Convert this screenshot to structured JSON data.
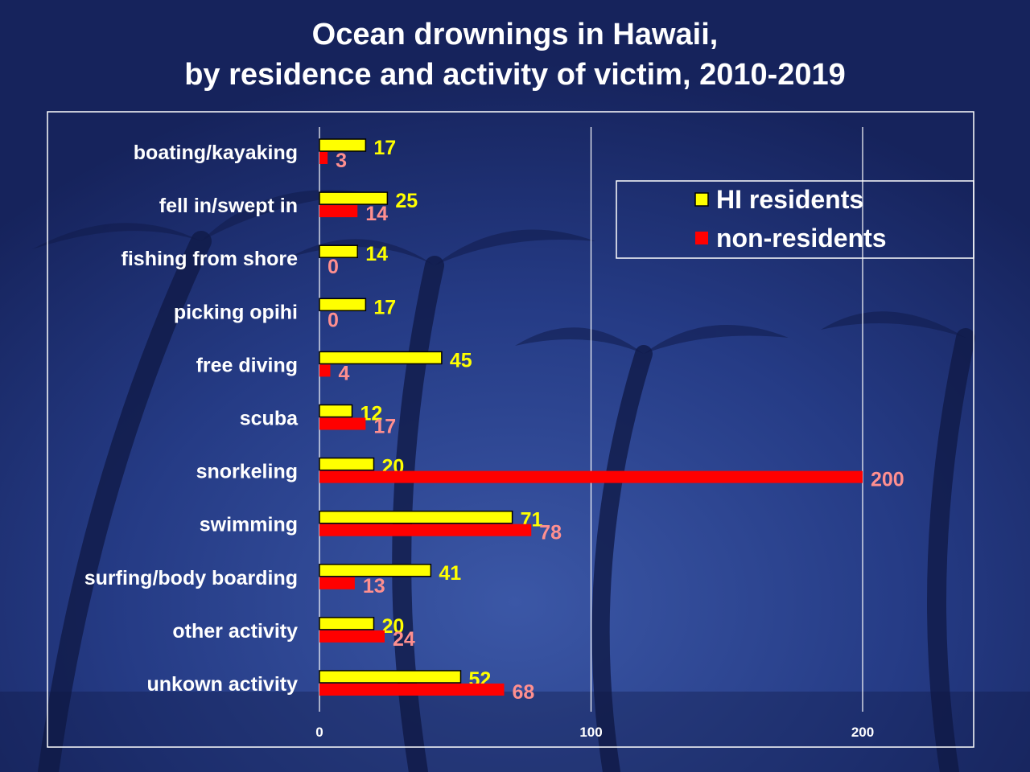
{
  "title_line1": "Ocean drownings in Hawaii,",
  "title_line2": "by residence and activity of victim, 2010-2019",
  "chart_data": {
    "type": "bar",
    "orientation": "horizontal",
    "categories": [
      "boating/kayaking",
      "fell in/swept in",
      "fishing from shore",
      "picking opihi",
      "free diving",
      "scuba",
      "snorkeling",
      "swimming",
      "surfing/body boarding",
      "other activity",
      "unkown activity"
    ],
    "series": [
      {
        "name": "HI residents",
        "color": "#ffff00",
        "label_color": "#ffff00",
        "values": [
          17,
          25,
          14,
          17,
          45,
          12,
          20,
          71,
          41,
          20,
          52
        ]
      },
      {
        "name": "non-residents",
        "color": "#ff0000",
        "label_color": "#ff8f8f",
        "values": [
          3,
          14,
          0,
          0,
          4,
          17,
          200,
          78,
          13,
          24,
          68
        ]
      }
    ],
    "xlim": [
      0,
      250
    ],
    "xticks": [
      0,
      100,
      200
    ],
    "grid": true,
    "legend": "top-right",
    "data_labels": true
  }
}
